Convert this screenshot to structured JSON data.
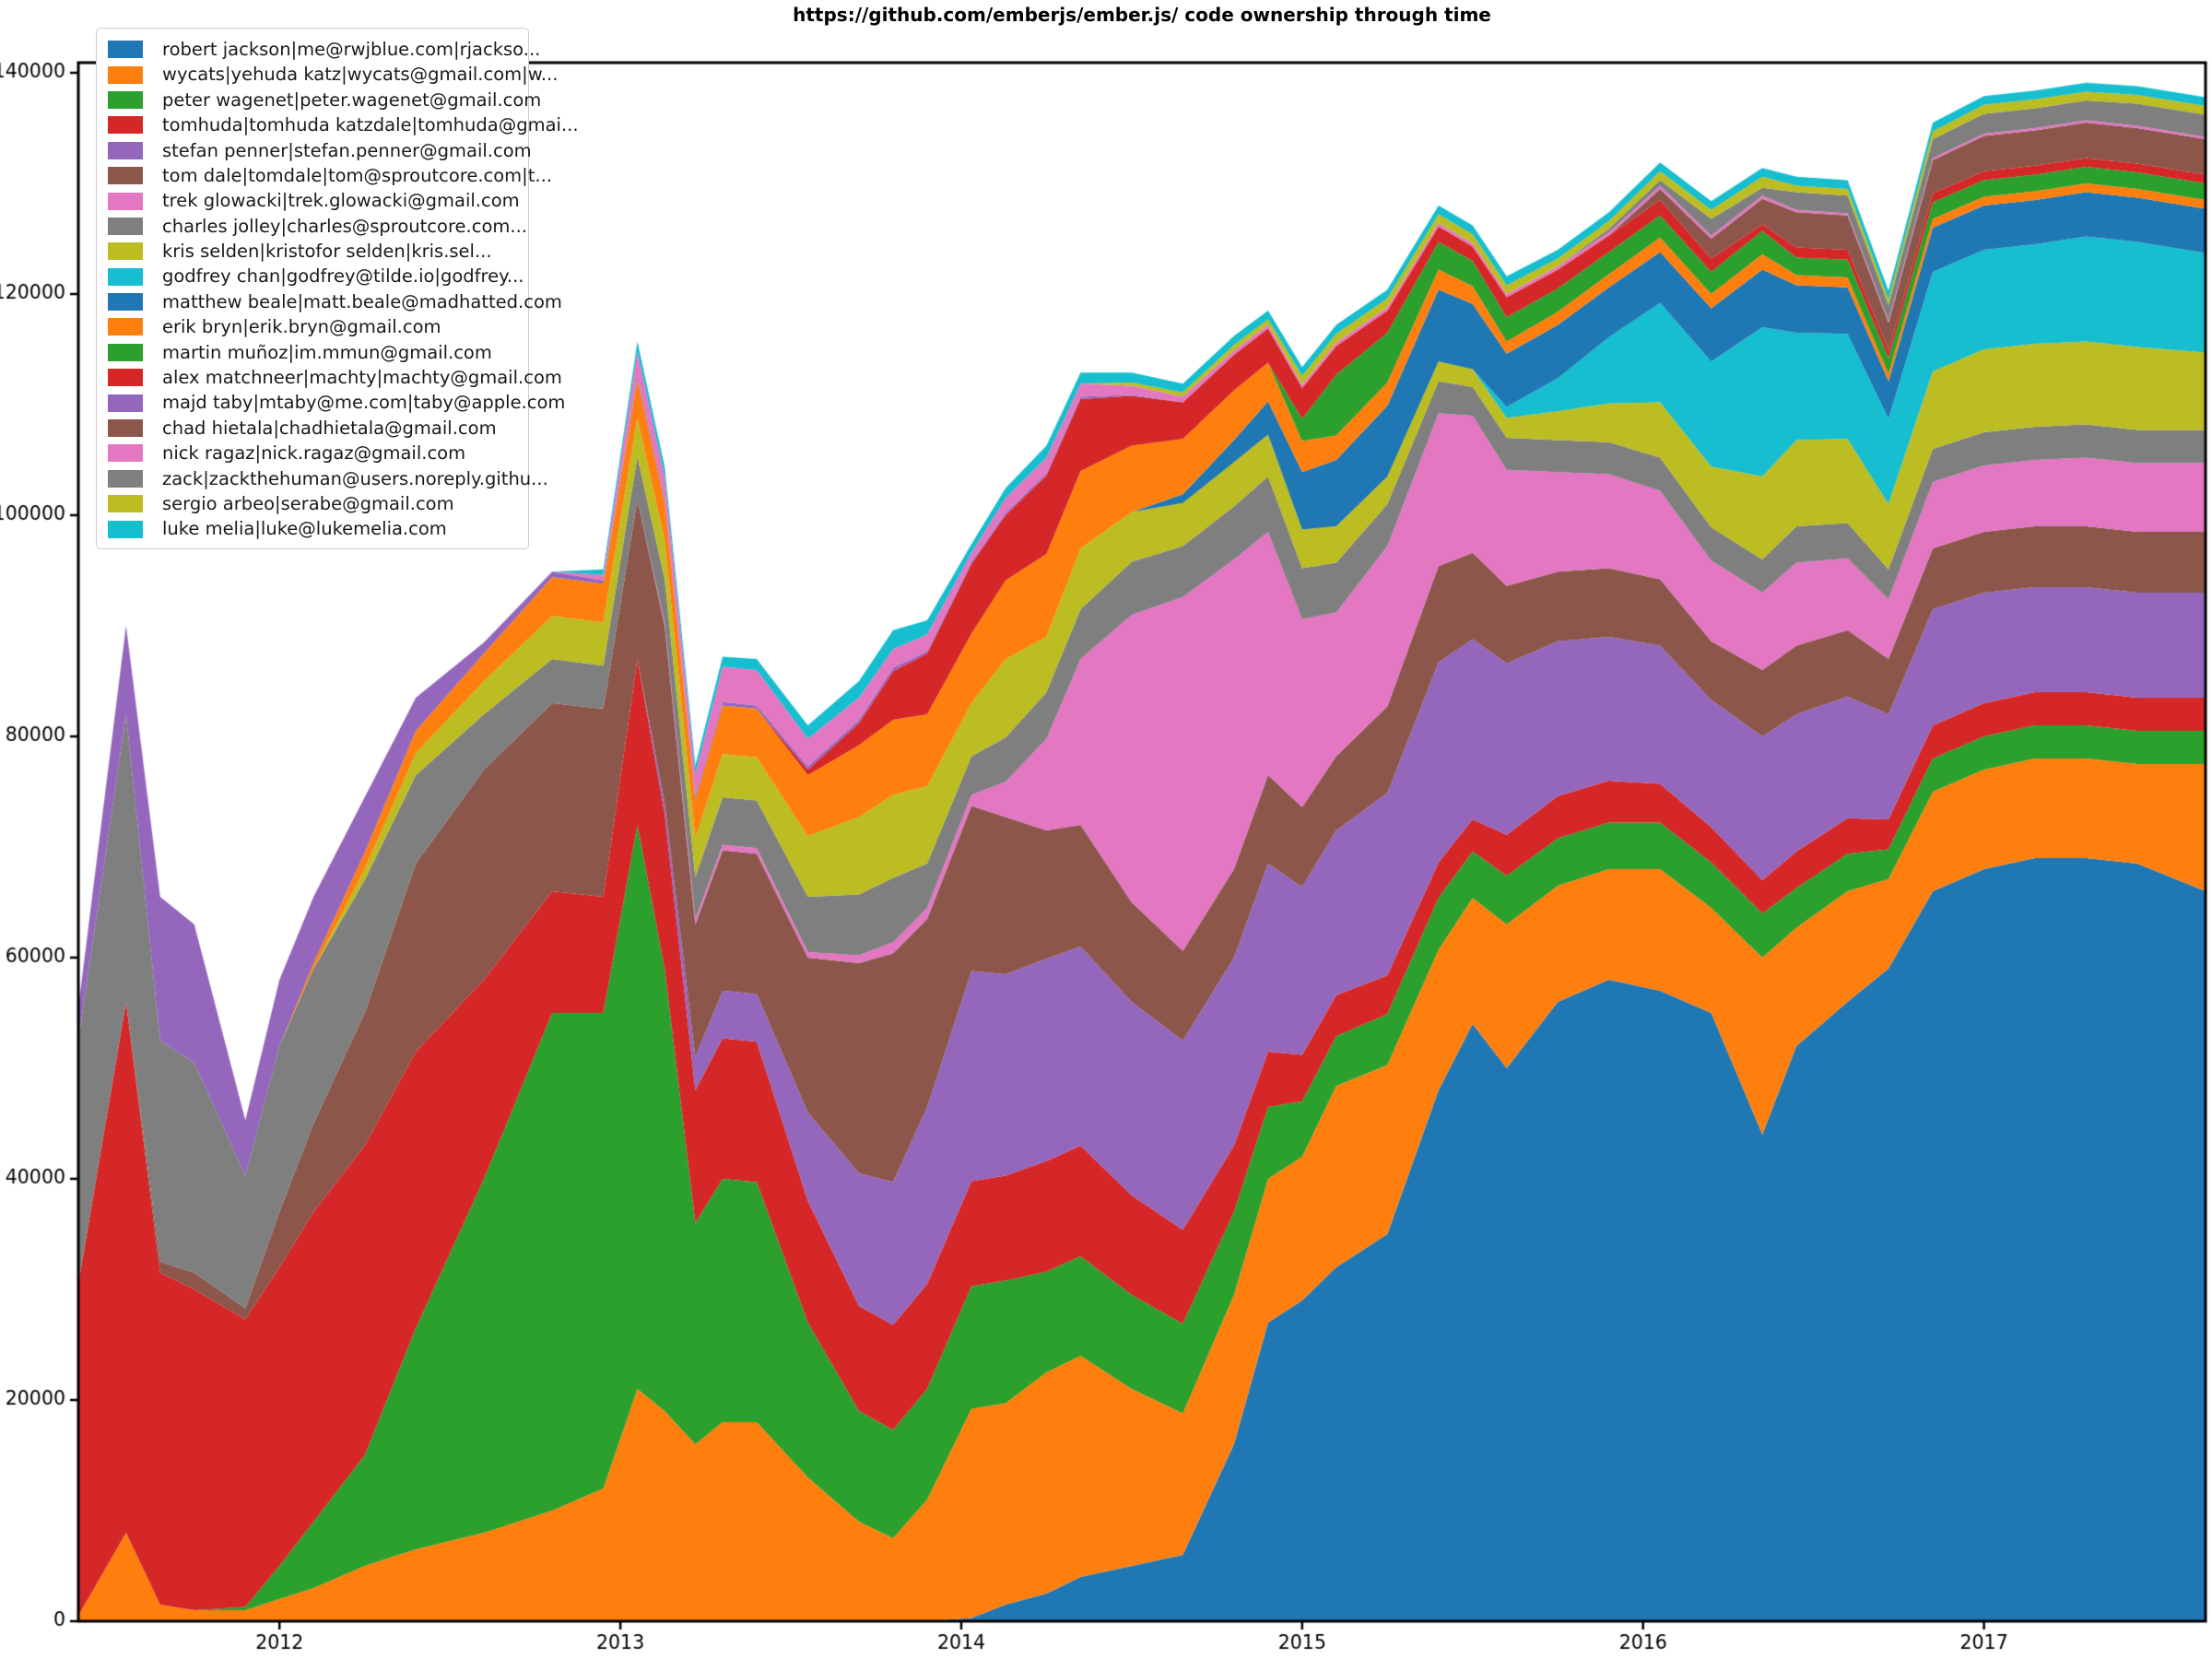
{
  "title": "https://github.com/emberjs/ember.js/ code ownership through time",
  "axes": {
    "x_ticks": [
      {
        "year": 2012,
        "label": "2012"
      },
      {
        "year": 2013,
        "label": "2013"
      },
      {
        "year": 2014,
        "label": "2014"
      },
      {
        "year": 2015,
        "label": "2015"
      },
      {
        "year": 2016,
        "label": "2016"
      },
      {
        "year": 2017,
        "label": "2017"
      }
    ],
    "y_ticks": [
      {
        "value": 0,
        "label": "0"
      },
      {
        "value": 20000,
        "label": "20000"
      },
      {
        "value": 40000,
        "label": "40000"
      },
      {
        "value": 60000,
        "label": "60000"
      },
      {
        "value": 80000,
        "label": "80000"
      },
      {
        "value": 100000,
        "label": "100000"
      },
      {
        "value": 120000,
        "label": "120000"
      },
      {
        "value": 140000,
        "label": "140000"
      }
    ]
  },
  "chart_data": {
    "type": "area",
    "stacked": true,
    "title": "https://github.com/emberjs/ember.js/ code ownership through time",
    "xlabel": "",
    "ylabel": "",
    "grid": false,
    "legend_position": "upper left",
    "xlim": [
      2011.41,
      2017.65
    ],
    "ylim": [
      0,
      140917
    ],
    "x": [
      2011.41,
      2011.55,
      2011.65,
      2011.75,
      2011.9,
      2012.0,
      2012.1,
      2012.25,
      2012.4,
      2012.6,
      2012.8,
      2012.95,
      2013.05,
      2013.13,
      2013.22,
      2013.3,
      2013.4,
      2013.55,
      2013.7,
      2013.8,
      2013.9,
      2014.03,
      2014.13,
      2014.25,
      2014.35,
      2014.5,
      2014.65,
      2014.8,
      2014.9,
      2015.0,
      2015.1,
      2015.25,
      2015.4,
      2015.5,
      2015.6,
      2015.75,
      2015.9,
      2016.05,
      2016.2,
      2016.35,
      2016.45,
      2016.6,
      2016.72,
      2016.85,
      2017.0,
      2017.15,
      2017.3,
      2017.45,
      2017.65
    ],
    "series": [
      {
        "name": "robert jackson|me@rwjblue.com|rjackso...",
        "color": "#1f77b4",
        "values": [
          0,
          0,
          0,
          0,
          0,
          0,
          0,
          0,
          0,
          0,
          0,
          0,
          0,
          0,
          0,
          0,
          0,
          0,
          0,
          0,
          0,
          300,
          1500,
          2500,
          4000,
          5000,
          6000,
          16000,
          27000,
          29000,
          32000,
          35000,
          48000,
          54000,
          50000,
          56000,
          58000,
          57000,
          55000,
          44000,
          52000,
          56000,
          59000,
          66000,
          68000,
          69000,
          69000,
          68500,
          66000
        ]
      },
      {
        "name": "wycats|yehuda katz|wycats@gmail.com|w...",
        "color": "#ff7f0e",
        "values": [
          500,
          8000,
          1500,
          1000,
          1000,
          2000,
          3000,
          5000,
          6500,
          8000,
          10000,
          12000,
          21000,
          19000,
          16000,
          18000,
          18000,
          13000,
          9000,
          7500,
          11000,
          18900,
          18200,
          20000,
          20000,
          16000,
          12800,
          13500,
          13000,
          13000,
          16400,
          15300,
          12700,
          11400,
          13000,
          10500,
          10000,
          11000,
          9500,
          16000,
          10700,
          10000,
          8100,
          9000,
          9000,
          9000,
          9000,
          9000,
          11500
        ]
      },
      {
        "name": "peter wagenet|peter.wagenet@gmail.com",
        "color": "#2ca02c",
        "values": [
          0,
          0,
          0,
          0,
          300,
          3000,
          6000,
          10000,
          20000,
          32000,
          45000,
          43000,
          51000,
          40000,
          20000,
          22000,
          21700,
          14000,
          10000,
          9800,
          10000,
          11100,
          11100,
          9100,
          9000,
          8500,
          8100,
          7500,
          6500,
          5000,
          4500,
          4600,
          4700,
          4200,
          4400,
          4300,
          4200,
          4200,
          4100,
          4000,
          3600,
          3400,
          2700,
          3000,
          3000,
          3000,
          3000,
          3000,
          3000
        ]
      },
      {
        "name": "tomhuda|tomhuda katzdale|tomhuda@gmai...",
        "color": "#d62728",
        "values": [
          30000,
          48000,
          30000,
          29000,
          26000,
          27000,
          28000,
          28000,
          25000,
          18000,
          11000,
          10500,
          15000,
          14000,
          12000,
          12700,
          12700,
          11000,
          9500,
          9500,
          9500,
          9500,
          9500,
          10000,
          10000,
          9000,
          8500,
          6000,
          5000,
          4200,
          3700,
          3500,
          3200,
          2900,
          3700,
          3800,
          3800,
          3500,
          3200,
          3000,
          3300,
          3200,
          2700,
          3000,
          3000,
          3000,
          3000,
          3000,
          3000
        ]
      },
      {
        "name": "stefan penner|stefan.penner@gmail.com",
        "color": "#9467bd",
        "values": [
          0,
          0,
          0,
          0,
          0,
          0,
          0,
          0,
          0,
          0,
          0,
          0,
          0,
          1000,
          3000,
          4300,
          4300,
          8000,
          12000,
          12900,
          16000,
          19000,
          18200,
          18300,
          18000,
          17500,
          17100,
          17000,
          17000,
          15200,
          14900,
          16500,
          18100,
          16300,
          15500,
          14000,
          13000,
          12500,
          11500,
          13000,
          12400,
          11000,
          9500,
          10500,
          10000,
          9500,
          9500,
          9500,
          9500
        ]
      },
      {
        "name": "tom dale|tomdale|tom@sproutcore.com|t...",
        "color": "#8c564b",
        "values": [
          0,
          0,
          1000,
          1500,
          1000,
          5000,
          8000,
          12000,
          17000,
          19000,
          17000,
          17000,
          14400,
          16000,
          12000,
          12700,
          12700,
          14000,
          19000,
          20700,
          17000,
          14900,
          14200,
          11600,
          11000,
          9000,
          8100,
          8000,
          8000,
          7200,
          6700,
          7800,
          8700,
          7800,
          7000,
          6300,
          6200,
          6000,
          5300,
          6000,
          6200,
          6000,
          5000,
          5500,
          5500,
          5500,
          5500,
          5500,
          5500
        ]
      },
      {
        "name": "trek glowacki|trek.glowacki@gmail.com",
        "color": "#e377c2",
        "values": [
          0,
          0,
          0,
          0,
          0,
          0,
          0,
          0,
          0,
          0,
          0,
          0,
          0,
          300,
          500,
          500,
          500,
          500,
          700,
          1000,
          1000,
          1000,
          3200,
          8300,
          15000,
          26000,
          32000,
          28000,
          22000,
          17000,
          13000,
          14500,
          13800,
          12400,
          10500,
          9000,
          8500,
          8000,
          7300,
          7000,
          7500,
          6500,
          5400,
          6000,
          6000,
          6000,
          6200,
          6200,
          6200
        ]
      },
      {
        "name": "charles jolley|charles@sproutcore.com...",
        "color": "#7f7f7f",
        "values": [
          22000,
          26000,
          20000,
          19000,
          12000,
          15000,
          14000,
          12000,
          8000,
          5000,
          4000,
          3900,
          3900,
          3900,
          3800,
          4300,
          4300,
          5000,
          5500,
          5800,
          4000,
          3500,
          4000,
          4200,
          4500,
          4800,
          4600,
          4800,
          5000,
          4600,
          4500,
          3800,
          2900,
          2600,
          2900,
          2900,
          2900,
          3000,
          3000,
          3000,
          3300,
          3200,
          2700,
          3000,
          3000,
          3000,
          3000,
          3000,
          3000
        ]
      },
      {
        "name": "kris selden|kristofor selden|kris.sel...",
        "color": "#bcbd22",
        "values": [
          0,
          0,
          0,
          0,
          0,
          0,
          0,
          1000,
          2000,
          3000,
          3900,
          3900,
          3500,
          3500,
          3500,
          3900,
          3900,
          5500,
          7000,
          7500,
          7000,
          4800,
          7100,
          5000,
          5500,
          4500,
          3900,
          4000,
          3800,
          3500,
          3300,
          2500,
          1800,
          1600,
          1800,
          2600,
          3500,
          5000,
          5500,
          7500,
          7800,
          7600,
          5900,
          7000,
          7500,
          7500,
          7500,
          7500,
          7000
        ]
      },
      {
        "name": "godfrey chan|godfrey@tilde.io|godfrey...",
        "color": "#17becf",
        "values": [
          0,
          0,
          0,
          0,
          0,
          0,
          0,
          0,
          0,
          0,
          0,
          0,
          0,
          0,
          0,
          0,
          0,
          0,
          0,
          0,
          0,
          0,
          0,
          0,
          0,
          0,
          0,
          0,
          0,
          0,
          0,
          0,
          0,
          0,
          1000,
          3000,
          6000,
          9000,
          9500,
          13500,
          9700,
          9500,
          7700,
          9000,
          9000,
          9000,
          9500,
          9500,
          9000
        ]
      },
      {
        "name": "matthew beale|matt.beale@madhatted.com",
        "color": "#1f77b4",
        "values": [
          0,
          0,
          0,
          0,
          0,
          0,
          0,
          0,
          0,
          0,
          0,
          0,
          0,
          0,
          0,
          0,
          0,
          0,
          0,
          0,
          0,
          0,
          0,
          0,
          0,
          0,
          800,
          2000,
          3000,
          5200,
          6000,
          6400,
          6500,
          5900,
          4800,
          4800,
          4500,
          4600,
          4800,
          5200,
          4300,
          4200,
          3400,
          4000,
          4000,
          4000,
          4000,
          4000,
          4000
        ]
      },
      {
        "name": "erik bryn|erik.bryn@gmail.com",
        "color": "#ff7f0e",
        "values": [
          0,
          0,
          0,
          0,
          0,
          0,
          500,
          1500,
          2000,
          2500,
          3500,
          3500,
          3500,
          3500,
          3500,
          4400,
          4400,
          5500,
          6500,
          6800,
          6500,
          6300,
          7100,
          7500,
          7000,
          6000,
          5000,
          4500,
          3500,
          2800,
          2200,
          2100,
          1800,
          1600,
          1100,
          1200,
          1200,
          1300,
          1300,
          1400,
          900,
          900,
          700,
          800,
          800,
          800,
          800,
          800,
          800
        ]
      },
      {
        "name": "martin muñoz|im.mmun@gmail.com",
        "color": "#2ca02c",
        "values": [
          0,
          0,
          0,
          0,
          0,
          0,
          0,
          0,
          0,
          0,
          0,
          0,
          0,
          0,
          0,
          0,
          0,
          0,
          0,
          0,
          0,
          0,
          0,
          0,
          0,
          0,
          0,
          0,
          0,
          2000,
          5500,
          4500,
          2500,
          2300,
          2200,
          2100,
          2000,
          2000,
          2000,
          2100,
          1600,
          1600,
          1400,
          1500,
          1500,
          1500,
          1500,
          1500,
          1500
        ]
      },
      {
        "name": "alex matchneer|machty|machty@gmail.com",
        "color": "#d62728",
        "values": [
          0,
          0,
          0,
          0,
          0,
          0,
          0,
          0,
          0,
          0,
          0,
          0,
          0,
          0,
          0,
          0,
          0,
          500,
          2000,
          4400,
          5500,
          6300,
          5900,
          7100,
          6500,
          4500,
          3300,
          3200,
          3100,
          2800,
          2600,
          2000,
          1400,
          1300,
          1800,
          1700,
          1500,
          1400,
          1200,
          600,
          900,
          900,
          700,
          800,
          800,
          800,
          800,
          800,
          800
        ]
      },
      {
        "name": "majd taby|mtaby@me.com|taby@apple.com",
        "color": "#9467bd",
        "values": [
          3000,
          8000,
          13000,
          12500,
          5000,
          6000,
          6000,
          5000,
          3000,
          1000,
          500,
          300,
          300,
          300,
          300,
          300,
          300,
          300,
          300,
          300,
          200,
          200,
          200,
          200,
          200,
          100,
          0,
          0,
          0,
          0,
          0,
          0,
          0,
          0,
          0,
          0,
          0,
          0,
          0,
          0,
          0,
          0,
          0,
          0,
          0,
          0,
          0,
          0,
          0
        ]
      },
      {
        "name": "chad hietala|chadhietala@gmail.com",
        "color": "#8c564b",
        "values": [
          0,
          0,
          0,
          0,
          0,
          0,
          0,
          0,
          0,
          0,
          0,
          0,
          0,
          0,
          0,
          0,
          0,
          0,
          0,
          0,
          0,
          0,
          0,
          0,
          0,
          0,
          0,
          0,
          0,
          0,
          0,
          0,
          0,
          0,
          0,
          0,
          0,
          1000,
          1800,
          2300,
          3200,
          3100,
          2500,
          3000,
          3200,
          3200,
          3200,
          3200,
          3200
        ]
      },
      {
        "name": "nick ragaz|nick.ragaz@gmail.com",
        "color": "#e377c2",
        "values": [
          0,
          0,
          0,
          0,
          0,
          0,
          0,
          0,
          0,
          0,
          0,
          500,
          2200,
          2000,
          2000,
          3200,
          3200,
          2500,
          2000,
          1700,
          1500,
          800,
          1350,
          1400,
          1200,
          800,
          500,
          400,
          300,
          300,
          300,
          300,
          300,
          300,
          300,
          300,
          300,
          300,
          300,
          300,
          200,
          200,
          200,
          200,
          200,
          200,
          200,
          200,
          200
        ]
      },
      {
        "name": "zack|zackthehuman@users.noreply.githu...",
        "color": "#7f7f7f",
        "values": [
          0,
          0,
          0,
          0,
          0,
          0,
          0,
          0,
          0,
          0,
          0,
          0,
          0,
          0,
          0,
          0,
          0,
          0,
          0,
          0,
          0,
          0,
          0,
          0,
          0,
          0,
          0,
          0,
          0,
          0,
          0,
          0,
          0,
          0,
          0,
          0,
          300,
          500,
          1500,
          700,
          1600,
          1600,
          1400,
          1700,
          1800,
          1800,
          1800,
          2000,
          2000
        ]
      },
      {
        "name": "sergio arbeo|serabe@gmail.com",
        "color": "#bcbd22",
        "values": [
          0,
          0,
          0,
          0,
          0,
          0,
          0,
          0,
          0,
          0,
          0,
          0,
          0,
          0,
          0,
          0,
          0,
          0,
          0,
          0,
          0,
          0,
          0,
          0,
          0,
          300,
          400,
          500,
          500,
          800,
          800,
          800,
          800,
          800,
          800,
          700,
          700,
          800,
          800,
          1000,
          600,
          600,
          500,
          700,
          800,
          800,
          800,
          800,
          800
        ]
      },
      {
        "name": "luke melia|luke@lukemelia.com",
        "color": "#17becf",
        "values": [
          0,
          0,
          0,
          0,
          0,
          0,
          0,
          0,
          0,
          0,
          0,
          500,
          900,
          900,
          800,
          900,
          1000,
          1200,
          1500,
          1700,
          1300,
          800,
          900,
          1100,
          1000,
          900,
          800,
          800,
          800,
          800,
          800,
          800,
          800,
          800,
          800,
          800,
          800,
          800,
          800,
          800,
          800,
          800,
          800,
          800,
          800,
          800,
          800,
          800,
          800
        ]
      }
    ]
  }
}
